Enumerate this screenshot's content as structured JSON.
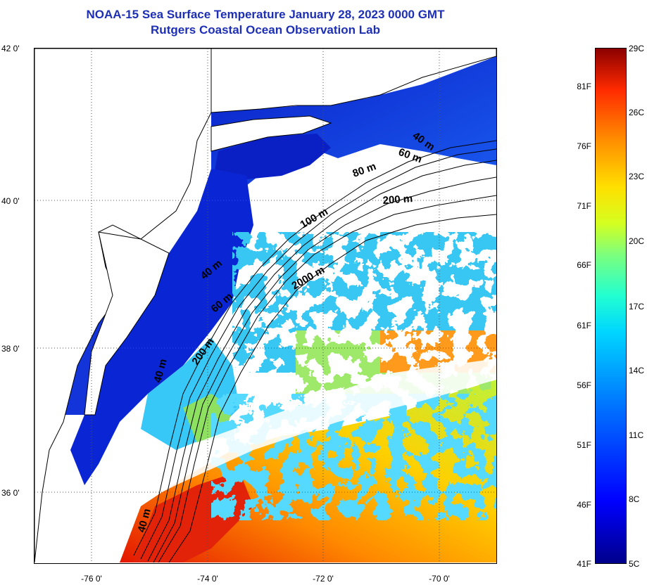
{
  "title": {
    "line1": "NOAA-15 Sea Surface Temperature January 28, 2023 0000 GMT",
    "line2": "Rutgers Coastal Ocean Observation Lab"
  },
  "map": {
    "lat_labels": [
      "42 0'",
      "40 0'",
      "38 0'",
      "36 0'"
    ],
    "lon_labels": [
      "-76 0'",
      "-74 0'",
      "-72 0'",
      "-70 0'"
    ],
    "contour_labels": [
      "40 m",
      "60 m",
      "80 m",
      "100 m",
      "200 m",
      "2000 m",
      "40 m",
      "60 m",
      "200 m",
      "40 m",
      "40 m"
    ]
  },
  "colorbar": {
    "fahrenheit_labels": [
      "81F",
      "76F",
      "71F",
      "66F",
      "61F",
      "56F",
      "51F",
      "46F",
      "41F"
    ],
    "celsius_labels": [
      "29C",
      "26C",
      "23C",
      "20C",
      "17C",
      "14C",
      "11C",
      "8C",
      "5C"
    ],
    "colors": [
      "#00008b",
      "#0000ff",
      "#0070ff",
      "#00d6ff",
      "#22ffd0",
      "#7dff7d",
      "#d4ff20",
      "#ffe000",
      "#ff9000",
      "#ff2a00",
      "#8b0000"
    ]
  }
}
